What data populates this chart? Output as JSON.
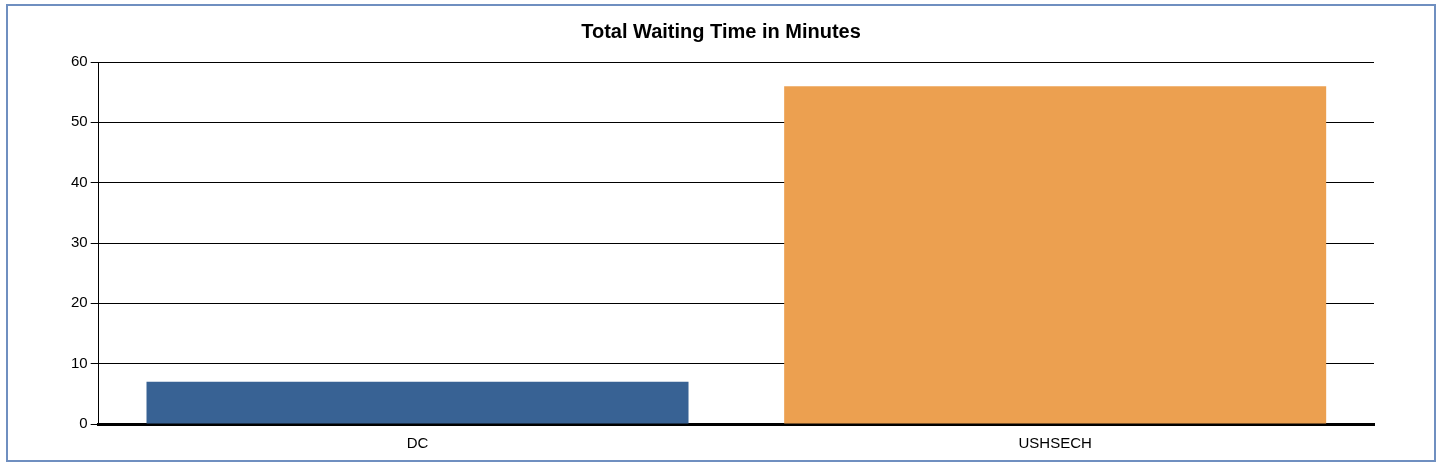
{
  "chart_data": {
    "type": "bar",
    "title": "Total Waiting Time in Minutes",
    "categories": [
      "DC",
      "USHSECH"
    ],
    "values": [
      7,
      56
    ],
    "colors": [
      "#386294",
      "#eca050"
    ],
    "ylim": [
      0,
      60
    ],
    "yticks": [
      0,
      10,
      20,
      30,
      40,
      50,
      60
    ],
    "grid": "y",
    "legend": false
  }
}
